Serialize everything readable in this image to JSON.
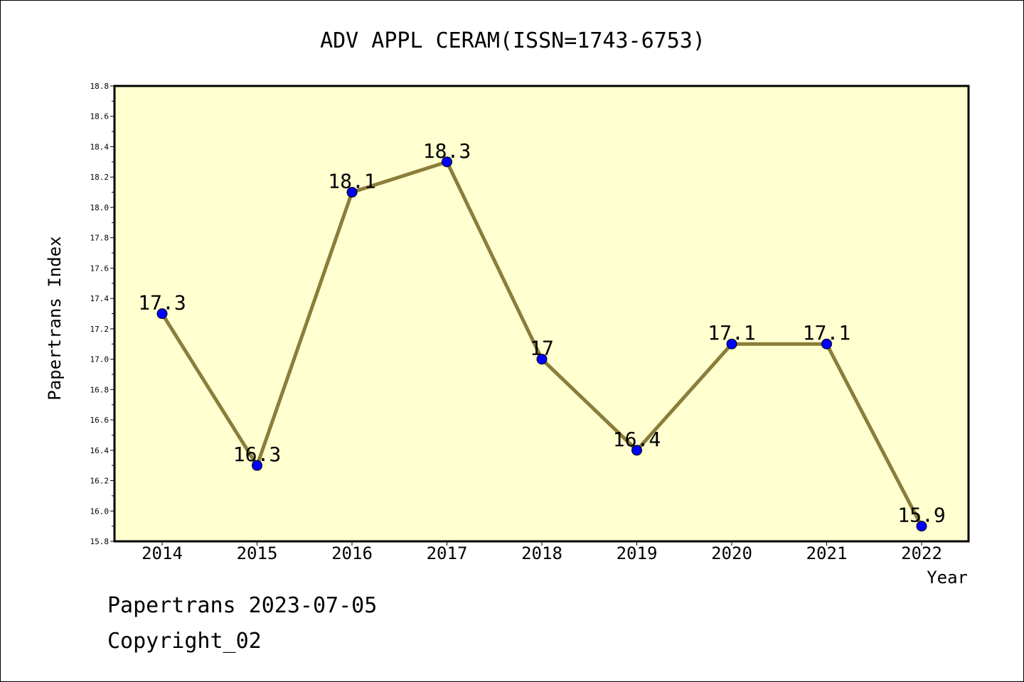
{
  "chart_data": {
    "type": "line",
    "title": "ADV APPL CERAM(ISSN=1743-6753)",
    "xlabel": "Year",
    "ylabel": "Papertrans Index",
    "categories": [
      "2014",
      "2015",
      "2016",
      "2017",
      "2018",
      "2019",
      "2020",
      "2021",
      "2022"
    ],
    "series": [
      {
        "values": [
          17.3,
          16.3,
          18.1,
          18.3,
          17.0,
          16.4,
          17.1,
          17.1,
          15.9
        ],
        "data_labels": [
          "17.3",
          "16.3",
          "18.1",
          "18.3",
          "17",
          "16.4",
          "17.1",
          "17.1",
          "15.9"
        ]
      }
    ],
    "ylim": [
      15.8,
      18.8
    ],
    "yticks": [
      "15.8",
      "16.0",
      "16.2",
      "16.4",
      "16.6",
      "16.8",
      "17.0",
      "17.2",
      "17.4",
      "17.6",
      "17.8",
      "18.0",
      "18.2",
      "18.4",
      "18.6",
      "18.8"
    ],
    "grid": false,
    "legend": "none",
    "colors": {
      "plot_background": "#ffffd0",
      "line": "#8b7d3a",
      "marker": "#0000ff"
    }
  },
  "footer": {
    "line1": "Papertrans 2023-07-05",
    "line2": "Copyright_02"
  }
}
